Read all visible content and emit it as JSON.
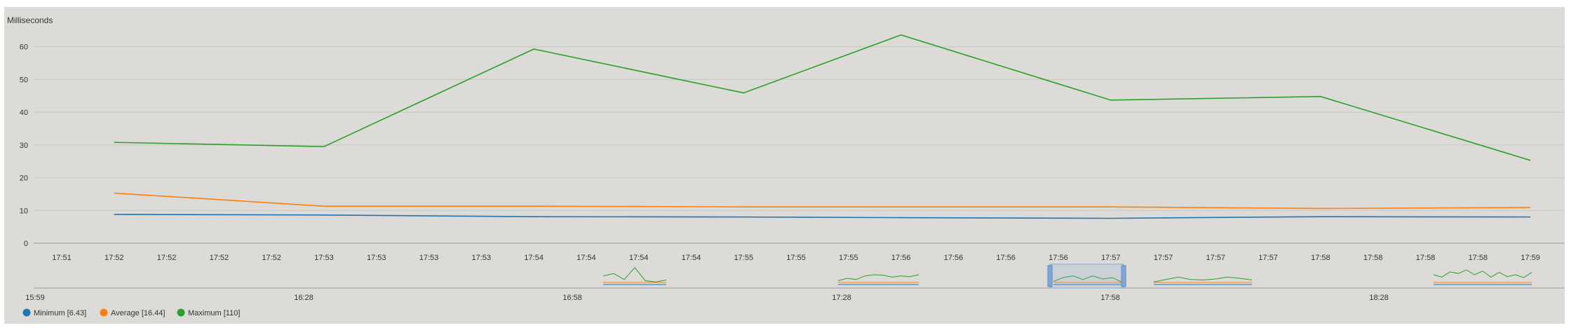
{
  "chart_data": {
    "type": "line",
    "ylabel": "Milliseconds",
    "ylim": [
      0,
      70
    ],
    "yticks": [
      0,
      10,
      20,
      30,
      40,
      50,
      60
    ],
    "grid": true,
    "x_tick_labels": [
      "17:51",
      "17:52",
      "17:52",
      "17:52",
      "17:52",
      "17:53",
      "17:53",
      "17:53",
      "17:53",
      "17:54",
      "17:54",
      "17:54",
      "17:54",
      "17:55",
      "17:55",
      "17:55",
      "17:56",
      "17:56",
      "17:56",
      "17:56",
      "17:57",
      "17:57",
      "17:57",
      "17:57",
      "17:58",
      "17:58",
      "17:58",
      "17:58",
      "17:59"
    ],
    "x": [
      "17:52",
      "17:53",
      "17:54",
      "17:55",
      "17:56",
      "17:57",
      "17:58",
      "17:59"
    ],
    "series": [
      {
        "name": "Minimum [6.43]",
        "color": "#1f77b4",
        "values": [
          8.8,
          8.6,
          8.1,
          8.0,
          7.8,
          7.6,
          8.1,
          8.0
        ]
      },
      {
        "name": "Average [16.44]",
        "color": "#ff7f0e",
        "values": [
          15.3,
          11.3,
          11.3,
          11.1,
          11.1,
          11.1,
          10.6,
          10.9
        ]
      },
      {
        "name": "Maximum [110]",
        "color": "#2ca02c",
        "values": [
          30.8,
          29.5,
          59.3,
          45.9,
          63.6,
          43.7,
          44.8,
          25.3
        ]
      }
    ],
    "navigator": {
      "tick_labels": [
        "15:59",
        "16:28",
        "16:58",
        "17:28",
        "17:58",
        "18:28"
      ]
    },
    "legend": "bottom-left"
  },
  "colors": {
    "background": "#dcdbd7",
    "grid": "#c8c7c3",
    "selection": "#7fa7d9"
  }
}
